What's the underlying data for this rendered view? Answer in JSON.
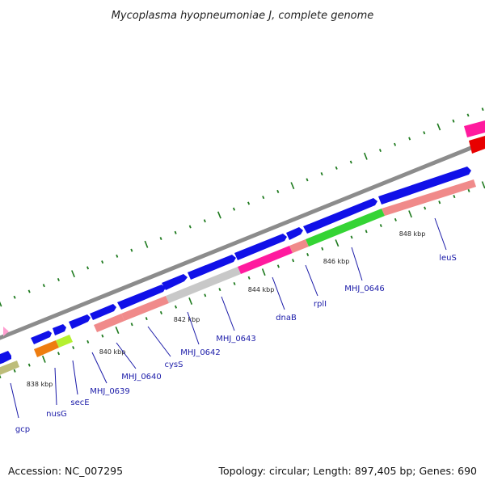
{
  "title": "Mycoplasma hyopneumoniae J, complete genome",
  "footer": {
    "accession": "Accession: NC_007295",
    "stats": "Topology: circular; Length: 897,405 bp; Genes: 690"
  },
  "colors": {
    "backbone": "#8c8c8c",
    "cds": "#1010e8",
    "tick": "#1e7a1e"
  },
  "tick_labels": [
    "838 kbp",
    "840 kbp",
    "842 kbp",
    "844 kbp",
    "846 kbp",
    "848 kbp"
  ],
  "gene_labels": [
    "gcp",
    "nusG",
    "secE",
    "MHJ_0639",
    "MHJ_0640",
    "cysS",
    "MHJ_0642",
    "MHJ_0643",
    "dnaB",
    "rplI",
    "MHJ_0646",
    "leuS"
  ]
}
